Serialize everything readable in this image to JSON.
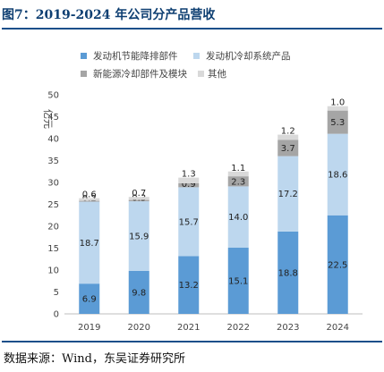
{
  "figure": {
    "title": "图7：2019-2024 年公司分产品营收",
    "source": "数据来源：Wind，东吴证券研究所"
  },
  "chart_data": {
    "type": "bar",
    "stacked": true,
    "categories": [
      "2019",
      "2020",
      "2021",
      "2022",
      "2023",
      "2024"
    ],
    "series": [
      {
        "name": "发动机节能降排部件",
        "color": "#5b9bd5",
        "values": [
          6.9,
          9.8,
          13.2,
          15.1,
          18.8,
          22.5
        ]
      },
      {
        "name": "发动机冷却系统产品",
        "color": "#bdd7ee",
        "values": [
          18.7,
          15.9,
          15.7,
          14.0,
          17.2,
          18.6
        ]
      },
      {
        "name": "新能源冷却部件及模块",
        "color": "#a5a5a5",
        "values": [
          0.2,
          0.3,
          0.9,
          2.3,
          3.7,
          5.3
        ]
      },
      {
        "name": "其他",
        "color": "#d9d9d9",
        "values": [
          0.6,
          0.7,
          1.3,
          1.1,
          1.2,
          1.0
        ]
      }
    ],
    "ylabel": "亿元",
    "ylim": [
      0,
      50
    ],
    "yticks": [
      0,
      5,
      10,
      15,
      20,
      25,
      30,
      35,
      40,
      45,
      50
    ],
    "grid": false,
    "legend": "top"
  }
}
